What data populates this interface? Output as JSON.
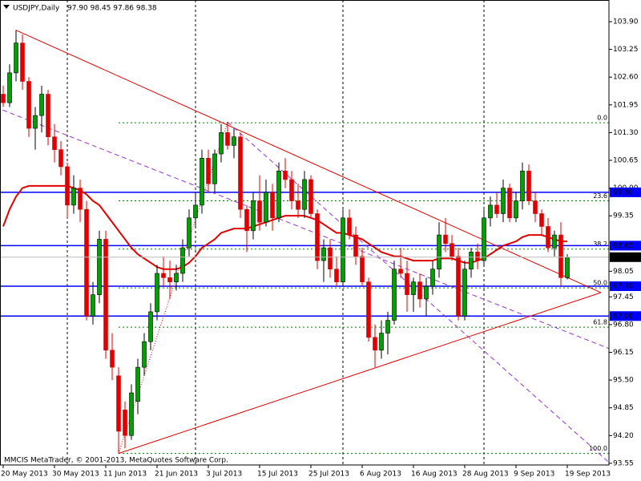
{
  "chart_data": {
    "type": "candlestick",
    "title": "USDJPY,Daily",
    "ohlc_text": "97.90 98.45 97.86 98.38",
    "footer": "MMCIS MetaTrader, © 2001-2013, MetaQuotes Software Corp.",
    "up_color": "#00a000",
    "down_color": "#e00000",
    "grid": false,
    "ylim": [
      93.51,
      104.37
    ],
    "yticks": [
      {
        "value": 103.9,
        "label": "103.90"
      },
      103.25,
      {
        "value": 102.6,
        "label": "102.60"
      },
      101.95,
      {
        "value": 101.3,
        "label": "101.30"
      },
      100.65,
      {
        "value": 100,
        "label": "100.00"
      },
      99.35,
      98.05,
      97.45,
      {
        "value": 96.8,
        "label": "96.80"
      },
      96.15,
      {
        "value": 95.5,
        "label": "95.50"
      },
      94.85,
      {
        "value": 94.2,
        "label": "94.20"
      },
      93.55
    ],
    "categories": [
      "20 May 2013",
      null,
      null,
      null,
      null,
      null,
      null,
      null,
      "30 May 2013",
      null,
      null,
      null,
      null,
      null,
      null,
      null,
      "11 Jun 2013",
      null,
      null,
      null,
      null,
      null,
      null,
      null,
      "21 Jun 2013",
      null,
      null,
      null,
      null,
      null,
      null,
      null,
      "3 Jul 2013",
      null,
      null,
      null,
      null,
      null,
      null,
      null,
      "15 Jul 2013",
      null,
      null,
      null,
      null,
      null,
      null,
      null,
      "25 Jul 2013",
      null,
      null,
      null,
      null,
      null,
      null,
      null,
      "6 Aug 2013",
      null,
      null,
      null,
      null,
      null,
      null,
      null,
      "16 Aug 2013",
      null,
      null,
      null,
      null,
      null,
      null,
      null,
      "28 Aug 2013",
      null,
      null,
      null,
      null,
      null,
      null,
      null,
      "9 Sep 2013",
      null,
      null,
      null,
      null,
      null,
      null,
      null,
      "19 Sep 2013"
    ],
    "candles": [
      [
        102.2,
        102.4,
        101.9,
        102.0
      ],
      [
        102.0,
        102.9,
        101.9,
        102.7
      ],
      [
        102.7,
        103.7,
        102.5,
        103.4
      ],
      [
        103.4,
        103.6,
        102.3,
        102.5
      ],
      [
        102.5,
        102.6,
        101.2,
        101.4
      ],
      [
        101.4,
        101.9,
        100.9,
        101.7
      ],
      [
        101.7,
        102.4,
        101.3,
        102.2
      ],
      [
        102.2,
        102.3,
        101.0,
        101.2
      ],
      [
        101.2,
        101.5,
        100.6,
        100.9
      ],
      [
        100.9,
        101.1,
        100.3,
        100.5
      ],
      [
        100.5,
        100.6,
        99.3,
        99.6
      ],
      [
        99.6,
        100.3,
        99.4,
        100.0
      ],
      [
        100.0,
        100.2,
        99.2,
        99.5
      ],
      [
        99.5,
        99.7,
        96.9,
        97.0
      ],
      [
        97.0,
        97.8,
        96.8,
        97.5
      ],
      [
        97.5,
        99.0,
        97.3,
        98.8
      ],
      [
        98.8,
        99.0,
        96.0,
        96.2
      ],
      [
        96.2,
        96.6,
        95.5,
        95.8
      ],
      [
        95.6,
        95.8,
        93.78,
        94.3
      ],
      [
        94.8,
        95.0,
        93.9,
        94.2
      ],
      [
        94.2,
        95.4,
        94.1,
        95.2
      ],
      [
        95.0,
        96.0,
        94.7,
        95.8
      ],
      [
        95.8,
        96.6,
        95.6,
        96.4
      ],
      [
        96.4,
        97.3,
        96.2,
        97.1
      ],
      [
        97.1,
        98.2,
        96.9,
        98.0
      ],
      [
        98.0,
        98.4,
        97.7,
        97.9
      ],
      [
        97.9,
        98.3,
        97.4,
        97.8
      ],
      [
        97.8,
        98.2,
        97.6,
        98.0
      ],
      [
        98.0,
        98.8,
        97.8,
        98.6
      ],
      [
        98.6,
        99.5,
        98.4,
        99.3
      ],
      [
        99.3,
        99.9,
        99.1,
        99.6
      ],
      [
        99.6,
        100.9,
        99.4,
        100.7
      ],
      [
        100.7,
        100.9,
        99.9,
        100.1
      ],
      [
        100.1,
        100.9,
        99.9,
        100.8
      ],
      [
        100.8,
        101.5,
        100.6,
        101.3
      ],
      [
        101.3,
        101.55,
        100.9,
        101.0
      ],
      [
        101.0,
        101.4,
        100.7,
        101.2
      ],
      [
        101.2,
        101.3,
        99.3,
        99.5
      ],
      [
        99.5,
        99.6,
        98.5,
        99.0
      ],
      [
        99.0,
        99.9,
        98.8,
        99.7
      ],
      [
        99.7,
        100.3,
        99.0,
        99.2
      ],
      [
        99.2,
        100.2,
        99.1,
        99.9
      ],
      [
        99.9,
        100.1,
        99.0,
        99.3
      ],
      [
        99.3,
        100.6,
        99.2,
        100.4
      ],
      [
        100.4,
        100.7,
        100.0,
        100.2
      ],
      [
        100.2,
        100.4,
        99.5,
        99.7
      ],
      [
        99.7,
        100.1,
        99.3,
        99.5
      ],
      [
        99.5,
        100.4,
        99.3,
        100.2
      ],
      [
        100.2,
        100.3,
        99.3,
        99.4
      ],
      [
        99.4,
        99.5,
        98.1,
        98.3
      ],
      [
        98.3,
        98.8,
        97.8,
        98.6
      ],
      [
        98.6,
        98.8,
        97.9,
        98.1
      ],
      [
        98.1,
        98.4,
        97.7,
        97.8
      ],
      [
        97.8,
        99.5,
        97.7,
        99.3
      ],
      [
        99.3,
        99.5,
        98.8,
        98.9
      ],
      [
        98.9,
        99.1,
        98.2,
        98.4
      ],
      [
        98.4,
        98.6,
        97.7,
        97.8
      ],
      [
        97.8,
        97.9,
        96.4,
        96.5
      ],
      [
        96.5,
        96.8,
        95.8,
        96.2
      ],
      [
        96.2,
        96.9,
        96.0,
        96.6
      ],
      [
        96.6,
        97.1,
        96.1,
        96.9
      ],
      [
        96.9,
        98.3,
        96.8,
        98.1
      ],
      [
        98.1,
        98.6,
        97.9,
        98.0
      ],
      [
        98.0,
        98.3,
        97.1,
        97.5
      ],
      [
        97.5,
        97.9,
        97.1,
        97.8
      ],
      [
        97.8,
        98.0,
        97.2,
        97.4
      ],
      [
        97.4,
        97.9,
        97.0,
        97.7
      ],
      [
        97.7,
        98.3,
        97.5,
        98.1
      ],
      [
        98.1,
        99.2,
        97.9,
        98.9
      ],
      [
        98.9,
        99.3,
        98.5,
        98.7
      ],
      [
        98.7,
        98.9,
        98.3,
        98.4
      ],
      [
        98.4,
        98.6,
        96.9,
        97.0
      ],
      [
        97.0,
        98.3,
        96.9,
        98.1
      ],
      [
        98.1,
        98.6,
        97.9,
        98.5
      ],
      [
        98.5,
        98.7,
        98.1,
        98.3
      ],
      [
        98.3,
        99.5,
        98.2,
        99.3
      ],
      [
        99.3,
        99.8,
        99.1,
        99.6
      ],
      [
        99.6,
        99.9,
        99.3,
        99.4
      ],
      [
        99.4,
        100.2,
        99.2,
        100.0
      ],
      [
        100.0,
        100.1,
        99.2,
        99.3
      ],
      [
        99.3,
        99.9,
        99.2,
        99.7
      ],
      [
        99.7,
        100.6,
        99.5,
        100.4
      ],
      [
        100.4,
        100.55,
        99.6,
        99.7
      ],
      [
        99.7,
        99.9,
        99.2,
        99.4
      ],
      [
        99.4,
        99.5,
        98.9,
        99.1
      ],
      [
        99.1,
        99.3,
        98.5,
        98.6
      ],
      [
        98.6,
        99.0,
        98.4,
        98.9
      ],
      [
        98.9,
        99.2,
        97.7,
        97.9
      ],
      [
        97.9,
        98.45,
        97.86,
        98.38
      ]
    ],
    "ma_color": "#e00000",
    "ma": [
      99.1,
      99.5,
      99.8,
      100.0,
      100.05,
      100.05,
      100.05,
      100.05,
      100.05,
      100.05,
      100.05,
      100.0,
      99.95,
      99.85,
      99.7,
      99.6,
      99.4,
      99.2,
      99.0,
      98.8,
      98.6,
      98.45,
      98.35,
      98.25,
      98.15,
      98.1,
      98.1,
      98.1,
      98.15,
      98.25,
      98.4,
      98.6,
      98.7,
      98.8,
      98.95,
      99.0,
      99.05,
      99.05,
      99.05,
      99.1,
      99.15,
      99.2,
      99.25,
      99.3,
      99.35,
      99.35,
      99.35,
      99.35,
      99.3,
      99.25,
      99.15,
      99.05,
      98.95,
      98.95,
      98.9,
      98.85,
      98.8,
      98.7,
      98.6,
      98.5,
      98.45,
      98.4,
      98.4,
      98.35,
      98.3,
      98.3,
      98.3,
      98.3,
      98.35,
      98.35,
      98.35,
      98.3,
      98.25,
      98.25,
      98.3,
      98.35,
      98.45,
      98.55,
      98.65,
      98.7,
      98.75,
      98.85,
      98.9,
      98.9,
      98.9,
      98.85,
      98.8,
      98.75,
      98.75
    ],
    "separators": [
      10,
      30,
      53,
      75
    ],
    "level_color": "#0000ff",
    "levels": [
      {
        "value": 99.9,
        "label": "99.90"
      },
      98.65,
      {
        "value": 97.7,
        "label": "97.70"
      },
      {
        "value": 97.0,
        "label": "97.00"
      }
    ],
    "last_price": 98.38,
    "fibonacci": {
      "color": "#008000",
      "start": 18,
      "levels": [
        {
          "value": 101.53,
          "label": "0.0"
        },
        {
          "value": 99.7,
          "label": "23.6"
        },
        {
          "value": 98.57,
          "label": "38.2"
        },
        {
          "value": 97.66,
          "label": "50.0"
        },
        {
          "value": 96.74,
          "label": "61.8"
        },
        {
          "value": 93.78,
          "label": "100.0"
        }
      ]
    },
    "trendlines": [
      {
        "color": "#e00000",
        "style": "solid",
        "from": [
          2,
          103.7
        ],
        "to": [
          93.25,
          97.55
        ]
      },
      {
        "color": "#e00000",
        "style": "solid",
        "from": [
          18,
          93.78
        ],
        "to": [
          93.25,
          97.55
        ]
      },
      {
        "color": "#e00000",
        "style": "dotted",
        "from": [
          18,
          93.78
        ],
        "to": [
          35,
          101.55
        ]
      },
      {
        "color": "#9933cc",
        "style": "dashed",
        "from": [
          -0.1,
          101.83
        ],
        "to": [
          94.5,
          96.24
        ]
      },
      {
        "color": "#9933cc",
        "style": "dashed",
        "from": [
          35,
          101.55
        ],
        "to": [
          94.5,
          93.57
        ]
      }
    ]
  }
}
